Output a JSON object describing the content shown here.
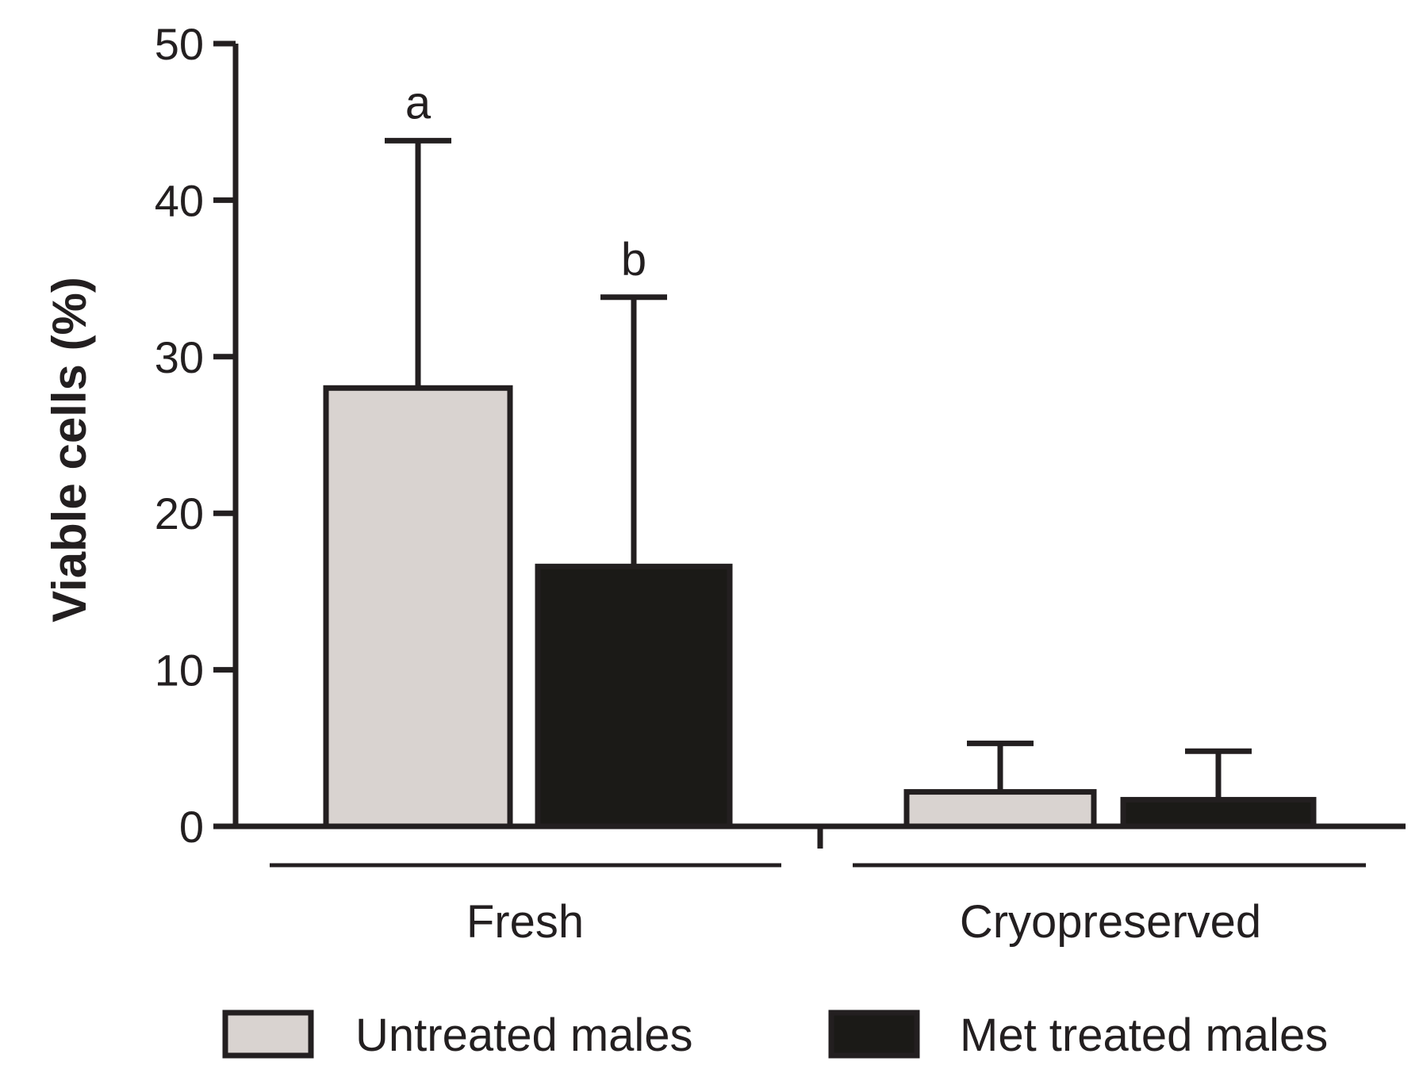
{
  "chart_data": {
    "type": "bar",
    "ylabel": "Viable cells (%)",
    "ylim": [
      0,
      50
    ],
    "yticks": [
      "0",
      "10",
      "20",
      "30",
      "40",
      "50"
    ],
    "categories": [
      "Fresh",
      "Cryopreserved"
    ],
    "series": [
      {
        "name": "Untreated males",
        "color": "#d9d3d0",
        "values": [
          28,
          2.2
        ],
        "errors": [
          15.8,
          3.1
        ],
        "annotations": [
          "a",
          ""
        ]
      },
      {
        "name": "Met treated males",
        "color": "#1b1a17",
        "values": [
          16.6,
          1.7
        ],
        "errors": [
          17.2,
          3.1
        ],
        "annotations": [
          "b",
          ""
        ]
      }
    ],
    "legend": [
      "Untreated males",
      "Met treated males"
    ],
    "legend_position": "bottom",
    "grid": false
  }
}
